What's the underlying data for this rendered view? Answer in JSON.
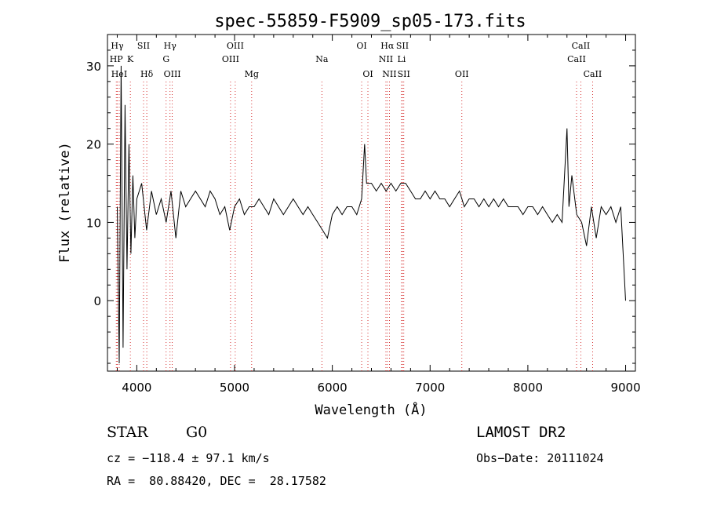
{
  "chart_data": {
    "type": "line",
    "title": "spec-55859-F5909_sp05-173.fits",
    "xlabel": "Wavelength (Å)",
    "ylabel": "Flux (relative)",
    "xlim": [
      3700,
      9100
    ],
    "ylim": [
      -9,
      34
    ],
    "x_ticks": [
      4000,
      5000,
      6000,
      7000,
      8000,
      9000
    ],
    "y_ticks": [
      0,
      10,
      20,
      30
    ],
    "grid": false,
    "line_color": "#000000",
    "marker_color": "#cc0000",
    "series": [
      {
        "x": [
          3800,
          3820,
          3840,
          3860,
          3880,
          3900,
          3920,
          3940,
          3960,
          3980,
          4000,
          4050,
          4100,
          4150,
          4200,
          4250,
          4300,
          4350,
          4400,
          4450,
          4500,
          4550,
          4600,
          4650,
          4700,
          4750,
          4800,
          4850,
          4900,
          4950,
          5000,
          5050,
          5100,
          5150,
          5200,
          5250,
          5300,
          5350,
          5400,
          5450,
          5500,
          5550,
          5600,
          5650,
          5700,
          5750,
          5800,
          5850,
          5900,
          5950,
          6000,
          6050,
          6100,
          6150,
          6200,
          6250,
          6300,
          6330,
          6350,
          6400,
          6450,
          6500,
          6550,
          6600,
          6650,
          6700,
          6750,
          6800,
          6850,
          6900,
          6950,
          7000,
          7050,
          7100,
          7150,
          7200,
          7250,
          7300,
          7350,
          7400,
          7450,
          7500,
          7550,
          7600,
          7650,
          7700,
          7750,
          7800,
          7850,
          7900,
          7950,
          8000,
          8050,
          8100,
          8150,
          8200,
          8250,
          8300,
          8350,
          8400,
          8420,
          8450,
          8500,
          8550,
          8600,
          8650,
          8700,
          8750,
          8800,
          8850,
          8900,
          8950,
          9000
        ],
        "y": [
          12,
          -8,
          30,
          -6,
          25,
          4,
          20,
          6,
          16,
          8,
          13,
          15,
          9,
          14,
          11,
          13,
          10,
          14,
          8,
          14,
          12,
          13,
          14,
          13,
          12,
          14,
          13,
          11,
          12,
          9,
          12,
          13,
          11,
          12,
          12,
          13,
          12,
          11,
          13,
          12,
          11,
          12,
          13,
          12,
          11,
          12,
          11,
          10,
          9,
          8,
          11,
          12,
          11,
          12,
          12,
          11,
          13,
          20,
          15,
          15,
          14,
          15,
          14,
          15,
          14,
          15,
          15,
          14,
          13,
          13,
          14,
          13,
          14,
          13,
          13,
          12,
          13,
          14,
          12,
          13,
          13,
          12,
          13,
          12,
          13,
          12,
          13,
          12,
          12,
          12,
          11,
          12,
          12,
          11,
          12,
          11,
          10,
          11,
          10,
          22,
          12,
          16,
          11,
          10,
          7,
          12,
          8,
          12,
          11,
          12,
          10,
          12,
          0
        ]
      }
    ],
    "line_markers": [
      {
        "label": "Hγ",
        "x": 3800,
        "row": 0
      },
      {
        "label": "HP",
        "x": 3790,
        "row": 1
      },
      {
        "label": "K",
        "x": 3934,
        "row": 1
      },
      {
        "label": "HeI",
        "x": 3820,
        "row": 2
      },
      {
        "label": "SII",
        "x": 4069,
        "row": 0
      },
      {
        "label": "Hδ",
        "x": 4102,
        "row": 2
      },
      {
        "label": "Hγ",
        "x": 4340,
        "row": 0
      },
      {
        "label": "G",
        "x": 4300,
        "row": 1
      },
      {
        "label": "OIII",
        "x": 4363,
        "row": 2
      },
      {
        "label": "OIII",
        "x": 5007,
        "row": 0
      },
      {
        "label": "OIII",
        "x": 4959,
        "row": 1
      },
      {
        "label": "Mg",
        "x": 5175,
        "row": 2
      },
      {
        "label": "Na",
        "x": 5893,
        "row": 1
      },
      {
        "label": "OI",
        "x": 6300,
        "row": 0
      },
      {
        "label": "OI",
        "x": 6364,
        "row": 2
      },
      {
        "label": "Hα",
        "x": 6563,
        "row": 0
      },
      {
        "label": "SII",
        "x": 6717,
        "row": 0
      },
      {
        "label": "NII",
        "x": 6548,
        "row": 1
      },
      {
        "label": "Li",
        "x": 6708,
        "row": 1
      },
      {
        "label": "NII",
        "x": 6584,
        "row": 2
      },
      {
        "label": "SII",
        "x": 6731,
        "row": 2
      },
      {
        "label": "OII",
        "x": 7325,
        "row": 2
      },
      {
        "label": "CaII",
        "x": 8542,
        "row": 0
      },
      {
        "label": "CaII",
        "x": 8498,
        "row": 1
      },
      {
        "label": "CaII",
        "x": 8662,
        "row": 2
      }
    ]
  },
  "info": {
    "object_type": "STAR",
    "subclass": "G0",
    "survey": "LAMOST DR2",
    "redshift_line": "cz = −118.4 ± 97.1 km/s",
    "obs_date_line": "Obs−Date: 20111024",
    "coords_line": "RA =  80.88420, DEC =  28.17582"
  }
}
